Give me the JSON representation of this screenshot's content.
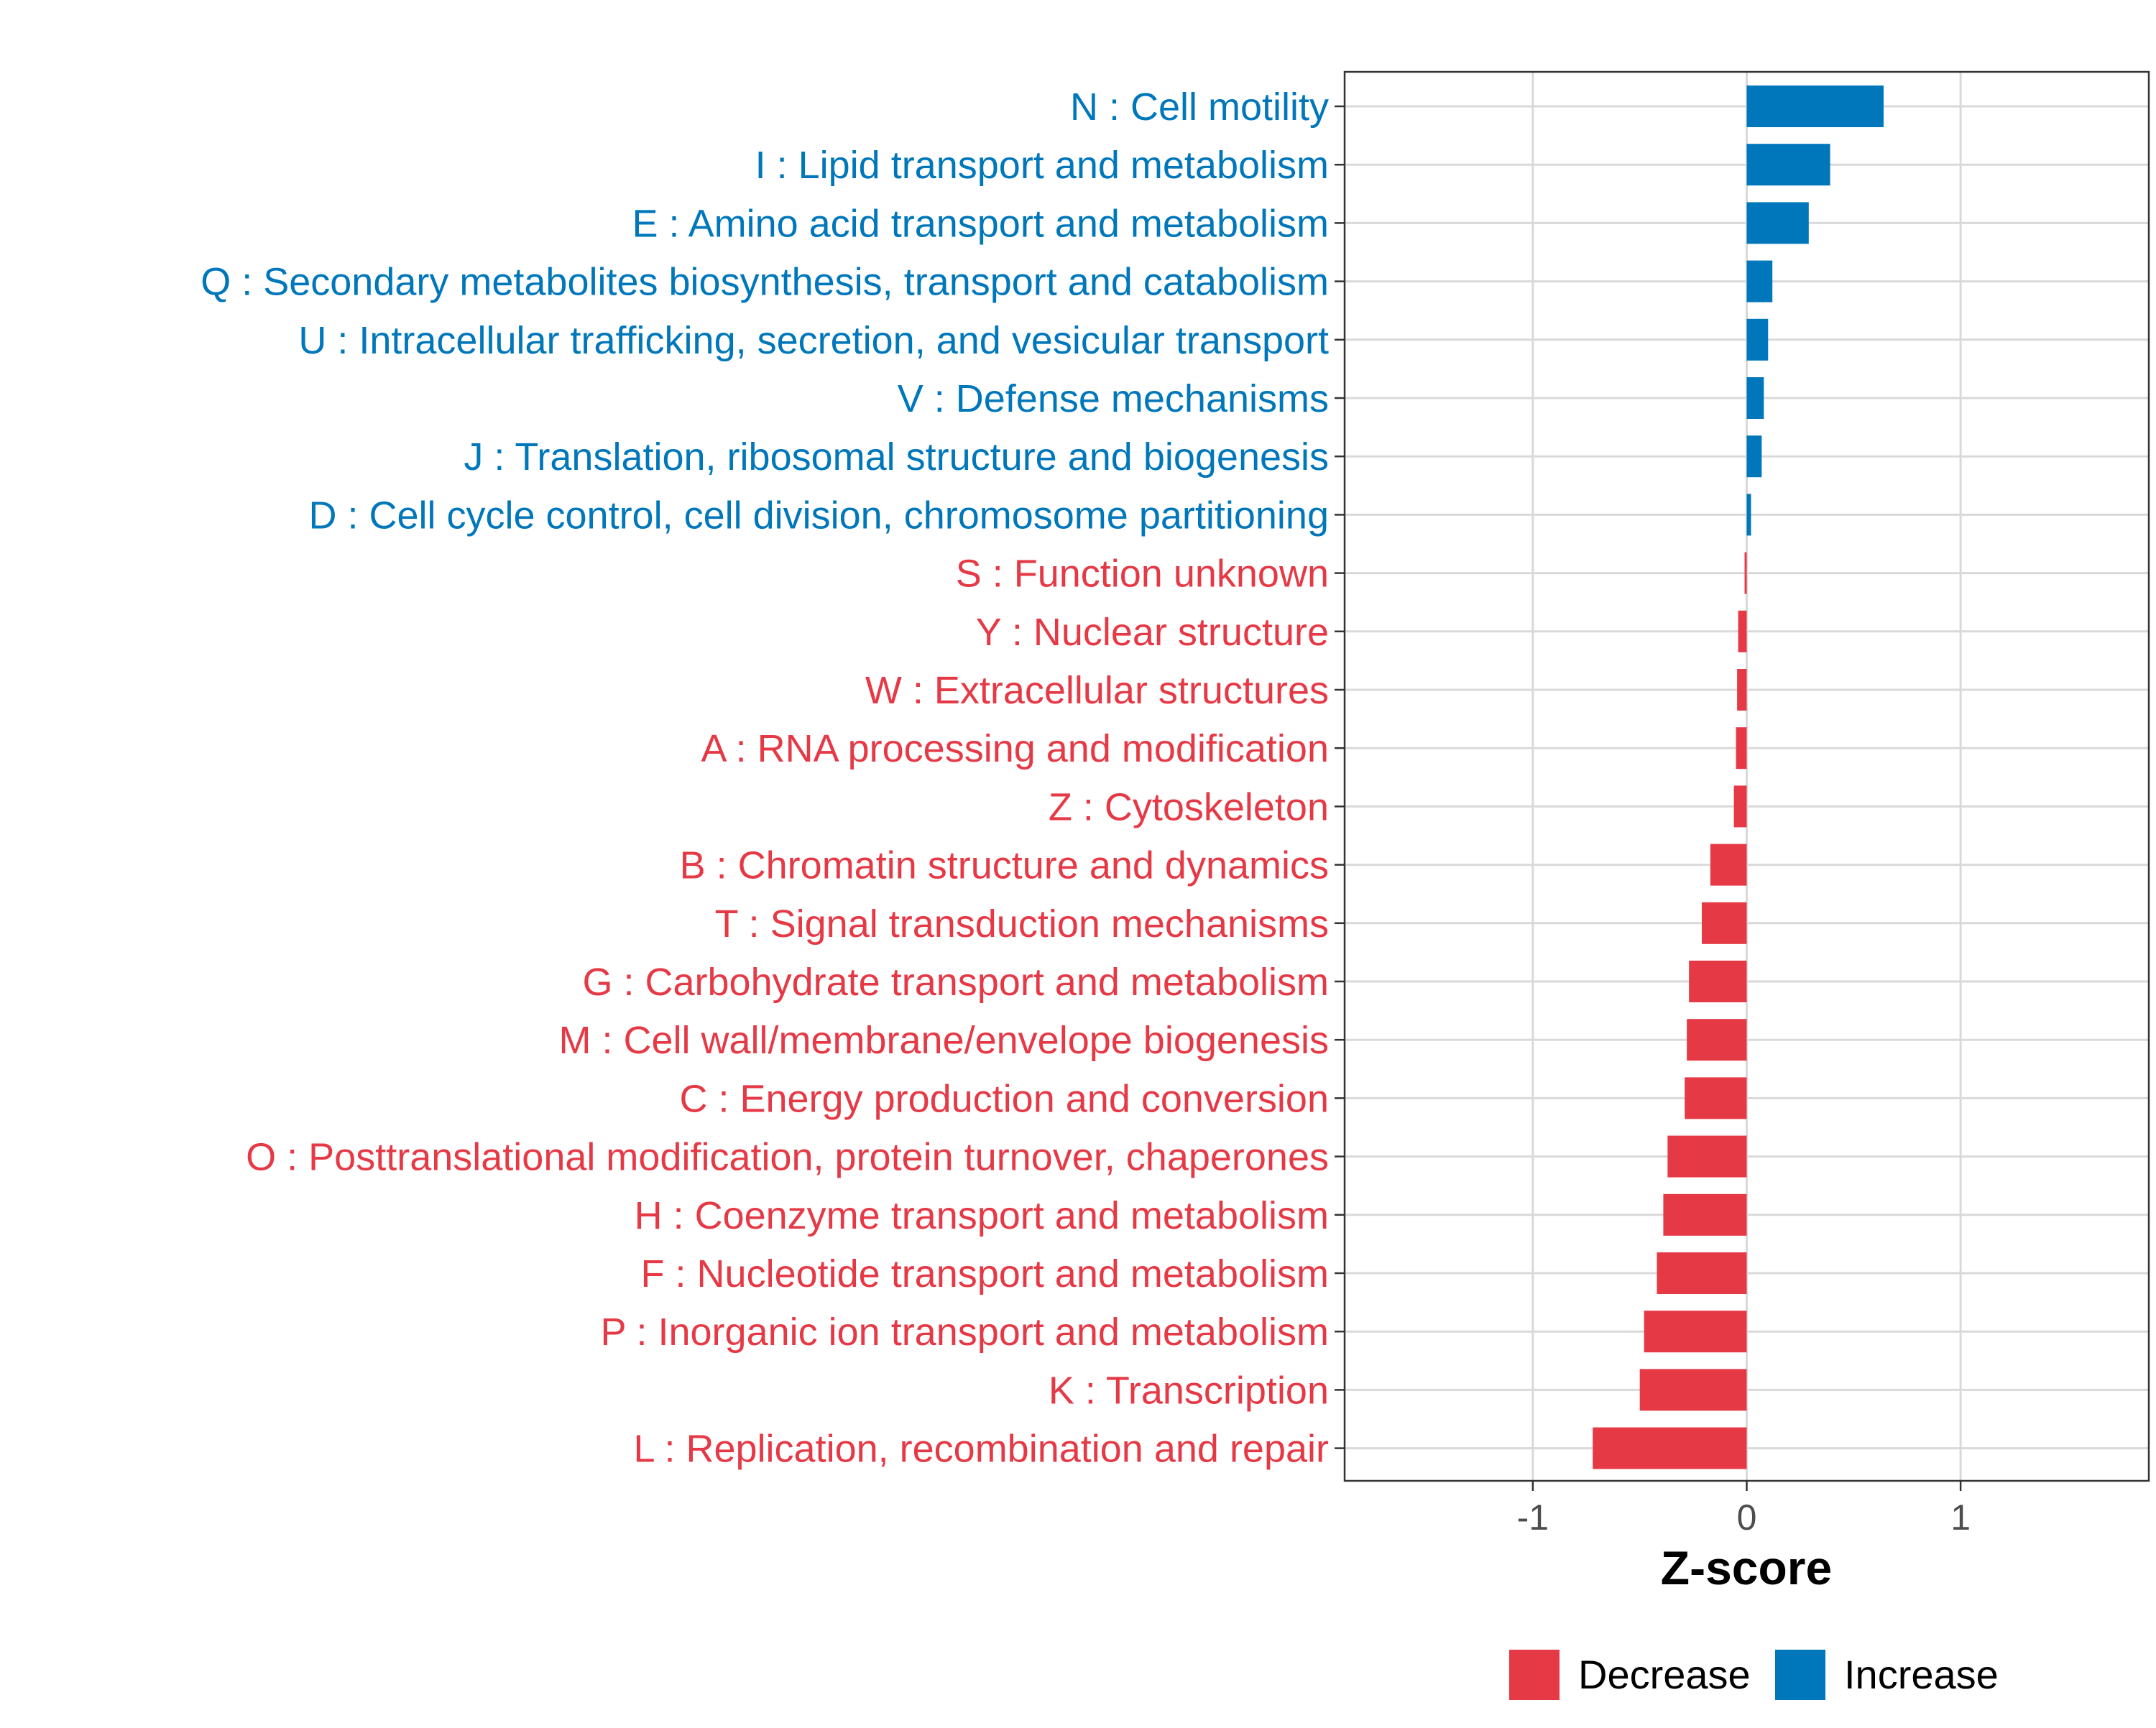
{
  "chart_data": {
    "type": "bar",
    "orientation": "horizontal",
    "xlabel": "Z-score",
    "xlim": [
      -1.88,
      1.88
    ],
    "xticks": [
      -1,
      0,
      1
    ],
    "xtick_labels": [
      "-1",
      "0",
      "1"
    ],
    "grid": true,
    "legend": {
      "position": "bottom",
      "items": [
        {
          "label": "Decrease",
          "color": "#E63946"
        },
        {
          "label": "Increase",
          "color": "#0077BB"
        }
      ]
    },
    "colors": {
      "Increase": "#0077BB",
      "Decrease": "#E63946"
    },
    "categories": [
      {
        "label": "N : Cell motility",
        "value": 0.64,
        "direction": "Increase"
      },
      {
        "label": "I : Lipid transport and metabolism",
        "value": 0.39,
        "direction": "Increase"
      },
      {
        "label": "E : Amino acid transport and metabolism",
        "value": 0.29,
        "direction": "Increase"
      },
      {
        "label": "Q : Secondary metabolites biosynthesis, transport and catabolism",
        "value": 0.12,
        "direction": "Increase"
      },
      {
        "label": "U : Intracellular trafficking, secretion, and vesicular transport",
        "value": 0.1,
        "direction": "Increase"
      },
      {
        "label": "V : Defense mechanisms",
        "value": 0.08,
        "direction": "Increase"
      },
      {
        "label": "J : Translation, ribosomal structure and biogenesis",
        "value": 0.07,
        "direction": "Increase"
      },
      {
        "label": "D : Cell cycle control, cell division, chromosome partitioning",
        "value": 0.02,
        "direction": "Increase"
      },
      {
        "label": "S : Function unknown",
        "value": -0.01,
        "direction": "Decrease"
      },
      {
        "label": "Y : Nuclear structure",
        "value": -0.04,
        "direction": "Decrease"
      },
      {
        "label": "W : Extracellular structures",
        "value": -0.045,
        "direction": "Decrease"
      },
      {
        "label": "A : RNA processing and modification",
        "value": -0.05,
        "direction": "Decrease"
      },
      {
        "label": "Z : Cytoskeleton",
        "value": -0.06,
        "direction": "Decrease"
      },
      {
        "label": "B : Chromatin structure and dynamics",
        "value": -0.17,
        "direction": "Decrease"
      },
      {
        "label": "T : Signal transduction mechanisms",
        "value": -0.21,
        "direction": "Decrease"
      },
      {
        "label": "G : Carbohydrate transport and metabolism",
        "value": -0.27,
        "direction": "Decrease"
      },
      {
        "label": "M : Cell wall/membrane/envelope biogenesis",
        "value": -0.28,
        "direction": "Decrease"
      },
      {
        "label": "C : Energy production and conversion",
        "value": -0.29,
        "direction": "Decrease"
      },
      {
        "label": "O : Posttranslational modification, protein turnover, chaperones",
        "value": -0.37,
        "direction": "Decrease"
      },
      {
        "label": "H : Coenzyme transport and metabolism",
        "value": -0.39,
        "direction": "Decrease"
      },
      {
        "label": "F : Nucleotide transport and metabolism",
        "value": -0.42,
        "direction": "Decrease"
      },
      {
        "label": "P : Inorganic ion transport and metabolism",
        "value": -0.48,
        "direction": "Decrease"
      },
      {
        "label": "K : Transcription",
        "value": -0.5,
        "direction": "Decrease"
      },
      {
        "label": "L : Replication, recombination and repair",
        "value": -0.72,
        "direction": "Decrease"
      }
    ]
  }
}
